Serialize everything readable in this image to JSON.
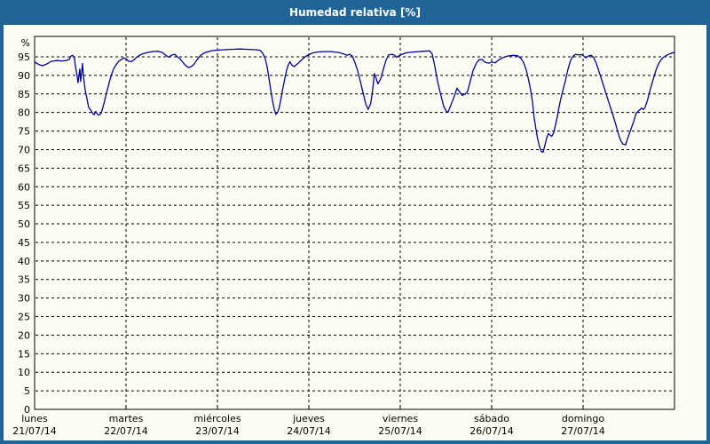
{
  "window": {
    "title": "Humedad relativa [%]"
  },
  "colors": {
    "frame_blue": "#1f6496",
    "panel_bg": "#fcfdf3",
    "line": "#0000a0",
    "grid": "#000000",
    "text": "#000000",
    "title_text": "#ffffff"
  },
  "chart_data": {
    "type": "line",
    "title": "Humedad relativa [%]",
    "ylabel": "%",
    "ylim": [
      0,
      100.5
    ],
    "xlim_days": [
      0,
      7
    ],
    "grid": "dashed",
    "legend": "none",
    "y_ticks": [
      0,
      5,
      10,
      15,
      20,
      25,
      30,
      35,
      40,
      45,
      50,
      55,
      60,
      65,
      70,
      75,
      80,
      85,
      90,
      95
    ],
    "x_days": [
      {
        "name": "lunes",
        "date": "21/07/14"
      },
      {
        "name": "martes",
        "date": "22/07/14"
      },
      {
        "name": "miércoles",
        "date": "23/07/14"
      },
      {
        "name": "jueves",
        "date": "24/07/14"
      },
      {
        "name": "viernes",
        "date": "25/07/14"
      },
      {
        "name": "sábado",
        "date": "26/07/14"
      },
      {
        "name": "domingo",
        "date": "27/07/14"
      }
    ],
    "series": [
      {
        "name": "Humedad relativa",
        "color": "#0000a0",
        "points": [
          [
            0.0,
            93.6
          ],
          [
            0.048,
            92.9
          ],
          [
            0.087,
            92.6
          ],
          [
            0.136,
            93.1
          ],
          [
            0.184,
            93.8
          ],
          [
            0.242,
            94.0
          ],
          [
            0.3,
            93.9
          ],
          [
            0.349,
            94.0
          ],
          [
            0.378,
            94.3
          ],
          [
            0.398,
            95.2
          ],
          [
            0.417,
            95.4
          ],
          [
            0.436,
            94.6
          ],
          [
            0.446,
            92.5
          ],
          [
            0.465,
            89.8
          ],
          [
            0.475,
            88.0
          ],
          [
            0.494,
            91.7
          ],
          [
            0.504,
            88.4
          ],
          [
            0.524,
            93.2
          ],
          [
            0.533,
            90.0
          ],
          [
            0.553,
            86.0
          ],
          [
            0.572,
            83.8
          ],
          [
            0.591,
            81.4
          ],
          [
            0.611,
            80.8
          ],
          [
            0.63,
            79.9
          ],
          [
            0.65,
            79.4
          ],
          [
            0.669,
            80.3
          ],
          [
            0.688,
            79.5
          ],
          [
            0.708,
            79.3
          ],
          [
            0.727,
            79.8
          ],
          [
            0.747,
            81.3
          ],
          [
            0.766,
            83.2
          ],
          [
            0.785,
            85.2
          ],
          [
            0.805,
            87.0
          ],
          [
            0.824,
            88.8
          ],
          [
            0.843,
            90.3
          ],
          [
            0.863,
            91.7
          ],
          [
            0.892,
            92.9
          ],
          [
            0.921,
            93.8
          ],
          [
            0.95,
            94.3
          ],
          [
            0.979,
            94.7
          ],
          [
            1.0,
            94.5
          ],
          [
            1.029,
            93.8
          ],
          [
            1.058,
            93.7
          ],
          [
            1.087,
            94.2
          ],
          [
            1.116,
            94.9
          ],
          [
            1.154,
            95.5
          ],
          [
            1.193,
            95.9
          ],
          [
            1.241,
            96.2
          ],
          [
            1.29,
            96.4
          ],
          [
            1.348,
            96.5
          ],
          [
            1.396,
            96.2
          ],
          [
            1.435,
            95.4
          ],
          [
            1.464,
            94.9
          ],
          [
            1.503,
            95.5
          ],
          [
            1.532,
            95.7
          ],
          [
            1.561,
            95.0
          ],
          [
            1.59,
            94.5
          ],
          [
            1.629,
            93.3
          ],
          [
            1.658,
            92.5
          ],
          [
            1.687,
            92.1
          ],
          [
            1.716,
            92.4
          ],
          [
            1.745,
            93.0
          ],
          [
            1.774,
            94.1
          ],
          [
            1.813,
            95.3
          ],
          [
            1.852,
            96.0
          ],
          [
            1.9,
            96.4
          ],
          [
            1.949,
            96.7
          ],
          [
            2.0,
            96.8
          ],
          [
            2.068,
            96.9
          ],
          [
            2.145,
            97.0
          ],
          [
            2.242,
            97.1
          ],
          [
            2.339,
            97.0
          ],
          [
            2.417,
            96.9
          ],
          [
            2.465,
            96.8
          ],
          [
            2.494,
            96.0
          ],
          [
            2.523,
            94.5
          ],
          [
            2.542,
            92.5
          ],
          [
            2.562,
            89.5
          ],
          [
            2.581,
            86.5
          ],
          [
            2.6,
            83.5
          ],
          [
            2.62,
            81.0
          ],
          [
            2.639,
            79.5
          ],
          [
            2.658,
            80.0
          ],
          [
            2.678,
            81.5
          ],
          [
            2.697,
            84.0
          ],
          [
            2.716,
            86.5
          ],
          [
            2.736,
            89.0
          ],
          [
            2.755,
            91.3
          ],
          [
            2.774,
            92.8
          ],
          [
            2.794,
            93.7
          ],
          [
            2.813,
            92.8
          ],
          [
            2.842,
            92.4
          ],
          [
            2.871,
            93.0
          ],
          [
            2.91,
            93.9
          ],
          [
            2.949,
            94.8
          ],
          [
            2.978,
            95.3
          ],
          [
            3.0,
            95.6
          ],
          [
            3.039,
            96.0
          ],
          [
            3.087,
            96.3
          ],
          [
            3.165,
            96.4
          ],
          [
            3.242,
            96.4
          ],
          [
            3.32,
            96.2
          ],
          [
            3.378,
            95.8
          ],
          [
            3.417,
            95.4
          ],
          [
            3.446,
            95.7
          ],
          [
            3.475,
            95.2
          ],
          [
            3.504,
            93.5
          ],
          [
            3.533,
            91.3
          ],
          [
            3.562,
            88.5
          ],
          [
            3.591,
            85.5
          ],
          [
            3.62,
            82.5
          ],
          [
            3.649,
            80.8
          ],
          [
            3.678,
            82.5
          ],
          [
            3.697,
            86.0
          ],
          [
            3.717,
            90.5
          ],
          [
            3.736,
            89.2
          ],
          [
            3.755,
            87.7
          ],
          [
            3.784,
            89.0
          ],
          [
            3.814,
            91.5
          ],
          [
            3.843,
            94.0
          ],
          [
            3.872,
            95.5
          ],
          [
            3.911,
            95.7
          ],
          [
            3.94,
            95.4
          ],
          [
            3.959,
            94.9
          ],
          [
            3.988,
            95.3
          ],
          [
            4.019,
            95.7
          ],
          [
            4.068,
            96.1
          ],
          [
            4.136,
            96.3
          ],
          [
            4.204,
            96.4
          ],
          [
            4.262,
            96.5
          ],
          [
            4.32,
            96.6
          ],
          [
            4.349,
            95.8
          ],
          [
            4.378,
            92.5
          ],
          [
            4.407,
            88.5
          ],
          [
            4.446,
            84.5
          ],
          [
            4.475,
            81.7
          ],
          [
            4.504,
            80.3
          ],
          [
            4.523,
            80.1
          ],
          [
            4.553,
            82.0
          ],
          [
            4.591,
            84.4
          ],
          [
            4.62,
            86.5
          ],
          [
            4.649,
            85.6
          ],
          [
            4.678,
            84.6
          ],
          [
            4.707,
            84.9
          ],
          [
            4.736,
            85.7
          ],
          [
            4.765,
            88.4
          ],
          [
            4.795,
            91.2
          ],
          [
            4.833,
            93.3
          ],
          [
            4.862,
            94.2
          ],
          [
            4.891,
            94.3
          ],
          [
            4.93,
            93.5
          ],
          [
            4.969,
            93.3
          ],
          [
            5.0,
            93.6
          ],
          [
            5.039,
            93.4
          ],
          [
            5.078,
            94.2
          ],
          [
            5.126,
            94.8
          ],
          [
            5.175,
            95.2
          ],
          [
            5.233,
            95.4
          ],
          [
            5.281,
            95.3
          ],
          [
            5.32,
            94.6
          ],
          [
            5.349,
            93.5
          ],
          [
            5.378,
            91.5
          ],
          [
            5.407,
            88.5
          ],
          [
            5.426,
            86.0
          ],
          [
            5.446,
            83.0
          ],
          [
            5.465,
            78.5
          ],
          [
            5.484,
            75.5
          ],
          [
            5.504,
            72.8
          ],
          [
            5.523,
            70.8
          ],
          [
            5.542,
            69.5
          ],
          [
            5.562,
            69.3
          ],
          [
            5.581,
            71.0
          ],
          [
            5.6,
            73.0
          ],
          [
            5.62,
            74.3
          ],
          [
            5.639,
            73.9
          ],
          [
            5.658,
            73.6
          ],
          [
            5.678,
            74.5
          ],
          [
            5.697,
            76.5
          ],
          [
            5.717,
            78.8
          ],
          [
            5.736,
            81.3
          ],
          [
            5.755,
            83.6
          ],
          [
            5.784,
            86.5
          ],
          [
            5.804,
            88.3
          ],
          [
            5.833,
            91.5
          ],
          [
            5.862,
            94.0
          ],
          [
            5.891,
            95.2
          ],
          [
            5.92,
            95.7
          ],
          [
            5.949,
            95.5
          ],
          [
            5.978,
            95.6
          ],
          [
            6.0,
            95.4
          ],
          [
            6.029,
            94.7
          ],
          [
            6.058,
            95.2
          ],
          [
            6.087,
            95.4
          ],
          [
            6.116,
            94.8
          ],
          [
            6.145,
            93.2
          ],
          [
            6.175,
            91.0
          ],
          [
            6.204,
            88.8
          ],
          [
            6.233,
            86.5
          ],
          [
            6.262,
            84.2
          ],
          [
            6.291,
            82.0
          ],
          [
            6.32,
            79.8
          ],
          [
            6.349,
            77.5
          ],
          [
            6.378,
            75.0
          ],
          [
            6.397,
            73.3
          ],
          [
            6.417,
            72.2
          ],
          [
            6.436,
            71.5
          ],
          [
            6.465,
            71.3
          ],
          [
            6.494,
            73.5
          ],
          [
            6.523,
            75.5
          ],
          [
            6.552,
            77.5
          ],
          [
            6.581,
            79.8
          ],
          [
            6.61,
            80.5
          ],
          [
            6.639,
            81.2
          ],
          [
            6.659,
            80.8
          ],
          [
            6.678,
            81.3
          ],
          [
            6.707,
            83.5
          ],
          [
            6.736,
            86.3
          ],
          [
            6.765,
            88.8
          ],
          [
            6.794,
            91.2
          ],
          [
            6.823,
            93.0
          ],
          [
            6.852,
            94.2
          ],
          [
            6.881,
            94.9
          ],
          [
            6.92,
            95.5
          ],
          [
            6.958,
            95.9
          ],
          [
            6.997,
            96.2
          ]
        ]
      }
    ]
  }
}
